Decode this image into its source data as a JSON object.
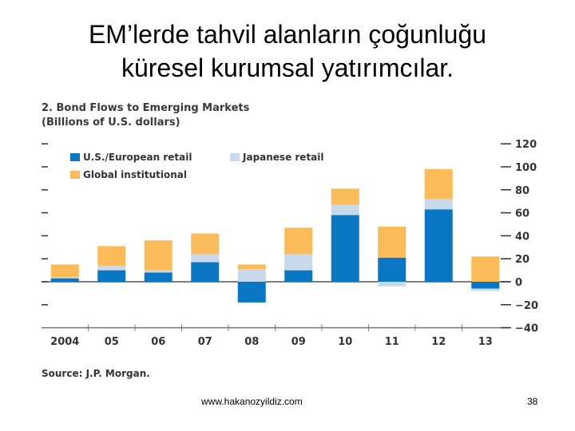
{
  "slide": {
    "title_line1": "EM’lerde tahvil alanların çoğunluğu",
    "title_line2": "küresel kurumsal yatırımcılar.",
    "footer_url": "www.hakanozyildiz.com",
    "page_number": "38"
  },
  "chart_data": {
    "type": "bar",
    "stacked": true,
    "title": "2. Bond Flows to Emerging Markets",
    "subtitle": "(Billions of U.S. dollars)",
    "source": "Source: J.P. Morgan.",
    "categories": [
      "2004",
      "05",
      "06",
      "07",
      "08",
      "09",
      "10",
      "11",
      "12",
      "13"
    ],
    "series": [
      {
        "name": "U.S./European retail",
        "color": "#0a77c4",
        "values": [
          3,
          10,
          8,
          17,
          -18,
          10,
          58,
          21,
          63,
          -6
        ]
      },
      {
        "name": "Japanese retail",
        "color": "#c9d9ec",
        "values": [
          1,
          4,
          2,
          7,
          11,
          14,
          9,
          -4,
          9,
          -2
        ]
      },
      {
        "name": "Global institutional",
        "color": "#fbbb59",
        "values": [
          11,
          17,
          26,
          18,
          4,
          23,
          14,
          27,
          26,
          22
        ]
      }
    ],
    "y_ticks": [
      "120",
      "100",
      "80",
      "60",
      "40",
      "20",
      "0",
      "−20",
      "−40"
    ],
    "ylim": [
      -40,
      120
    ],
    "legend_position": "top-left",
    "grid": false
  }
}
